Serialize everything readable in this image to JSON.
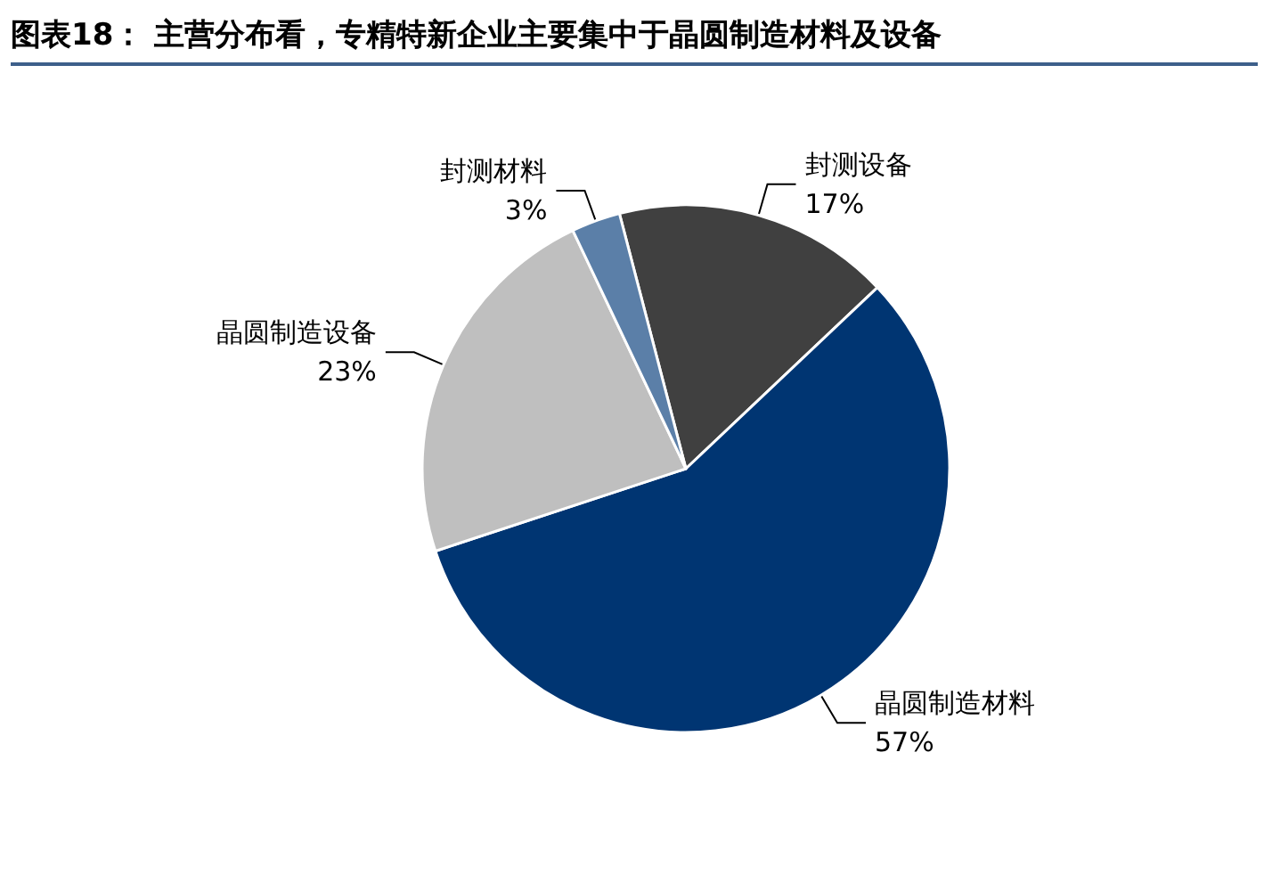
{
  "chart_data": {
    "type": "pie",
    "title": "图表18： 主营分布看，专精特新企业主要集中于晶圆制造材料及设备",
    "categories": [
      "封测设备",
      "晶圆制造材料",
      "晶圆制造设备",
      "封测材料"
    ],
    "values": [
      17,
      57,
      23,
      3
    ],
    "value_labels": [
      "17%",
      "57%",
      "23%",
      "3%"
    ],
    "colors": [
      "#404040",
      "#003572",
      "#bfbfbf",
      "#5b7fa8"
    ],
    "legend": false
  }
}
